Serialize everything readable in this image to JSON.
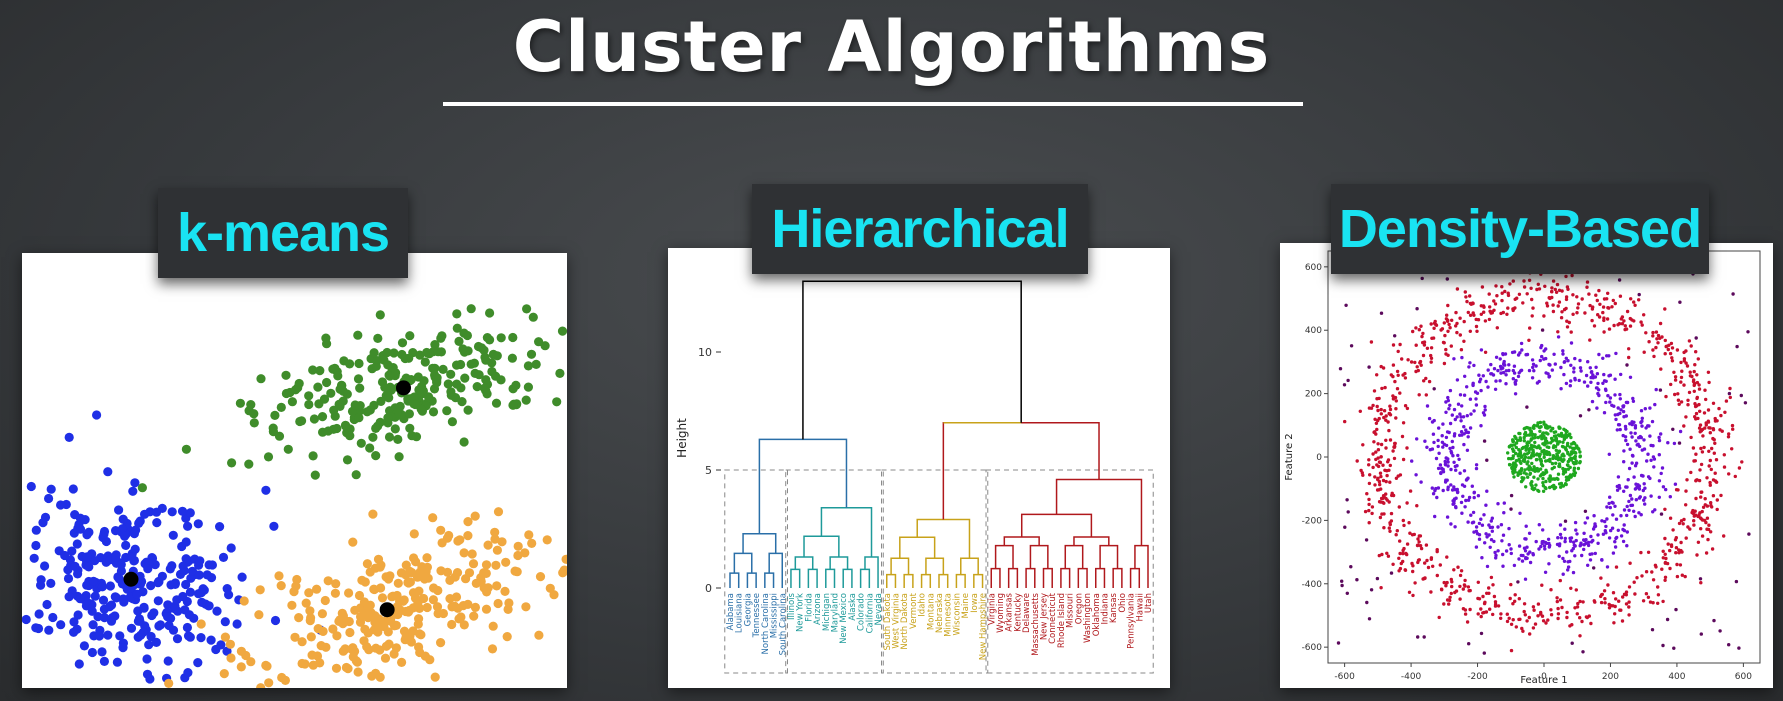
{
  "title": "Cluster Algorithms",
  "labels": {
    "kmeans": "k-means",
    "hierarchical": "Hierarchical",
    "density": "Density-Based"
  },
  "colors": {
    "accent_label": "#19e3f2",
    "kmeans_green": "#3f8c2a",
    "kmeans_blue": "#1f2fe6",
    "kmeans_orange": "#f0a840",
    "dend_blue": "#2a6fa8",
    "dend_teal": "#1e9a9a",
    "dend_yellow": "#c8a21a",
    "dend_red": "#b0181c",
    "density_red": "#c8102e",
    "density_purple": "#6a12d8",
    "density_green": "#1fa81f",
    "density_noise": "#5c0a5c"
  },
  "chart_data": [
    {
      "type": "scatter",
      "name": "k-means",
      "clusters": [
        {
          "color": "green",
          "center": [
            0.7,
            0.69
          ],
          "n": 260
        },
        {
          "color": "blue",
          "center": [
            0.2,
            0.25
          ],
          "n": 300
        },
        {
          "color": "orange",
          "center": [
            0.67,
            0.18
          ],
          "n": 280
        }
      ],
      "centroids": [
        [
          0.7,
          0.69
        ],
        [
          0.2,
          0.25
        ],
        [
          0.67,
          0.18
        ]
      ]
    },
    {
      "type": "dendrogram",
      "name": "Hierarchical",
      "ylabel": "Height",
      "yticks": [
        0,
        5,
        10
      ],
      "ylim": [
        0,
        14
      ],
      "groups": [
        {
          "color": "blue",
          "leaves": [
            "Alabama",
            "Louisiana",
            "Georgia",
            "Tennessee",
            "North Carolina",
            "Mississippi",
            "South Carolina"
          ]
        },
        {
          "color": "teal",
          "leaves": [
            "Illinois",
            "New York",
            "Florida",
            "Arizona",
            "Michigan",
            "Maryland",
            "New Mexico",
            "Alaska",
            "Colorado",
            "California",
            "Nevada"
          ]
        },
        {
          "color": "yellow",
          "leaves": [
            "South Dakota",
            "West Virginia",
            "North Dakota",
            "Vermont",
            "Idaho",
            "Montana",
            "Nebraska",
            "Minnesota",
            "Wisconsin",
            "Maine",
            "Iowa",
            "New Hampshire"
          ]
        },
        {
          "color": "red",
          "leaves": [
            "Virginia",
            "Wyoming",
            "Arkansas",
            "Kentucky",
            "Delaware",
            "Massachusetts",
            "New Jersey",
            "Connecticut",
            "Rhode Island",
            "Missouri",
            "Oregon",
            "Washington",
            "Oklahoma",
            "Indiana",
            "Kansas",
            "Ohio",
            "Pennsylvania",
            "Hawaii",
            "Utah"
          ]
        }
      ],
      "merge_heights": {
        "top": 13.0,
        "left": 6.3,
        "right": 7.0,
        "blue": 2.3,
        "teal": 3.4,
        "yellow": 2.9,
        "red": 4.6
      }
    },
    {
      "type": "scatter",
      "name": "Density-Based",
      "xlabel": "Feature 1",
      "ylabel": "Feature 2",
      "xlim": [
        -650,
        650
      ],
      "ylim": [
        -650,
        650
      ],
      "xticks": [
        -600,
        -400,
        -200,
        0,
        200,
        400,
        600
      ],
      "yticks": [
        -600,
        -400,
        -200,
        0,
        200,
        400,
        600
      ],
      "clusters": [
        {
          "color": "red",
          "shape": "ring",
          "radius": 500,
          "n": 900
        },
        {
          "color": "purple",
          "shape": "ring",
          "radius": 300,
          "n": 650
        },
        {
          "color": "green",
          "shape": "disk",
          "radius": 110,
          "n": 420
        },
        {
          "color": "noise",
          "shape": "uniform",
          "n": 180
        }
      ]
    }
  ]
}
